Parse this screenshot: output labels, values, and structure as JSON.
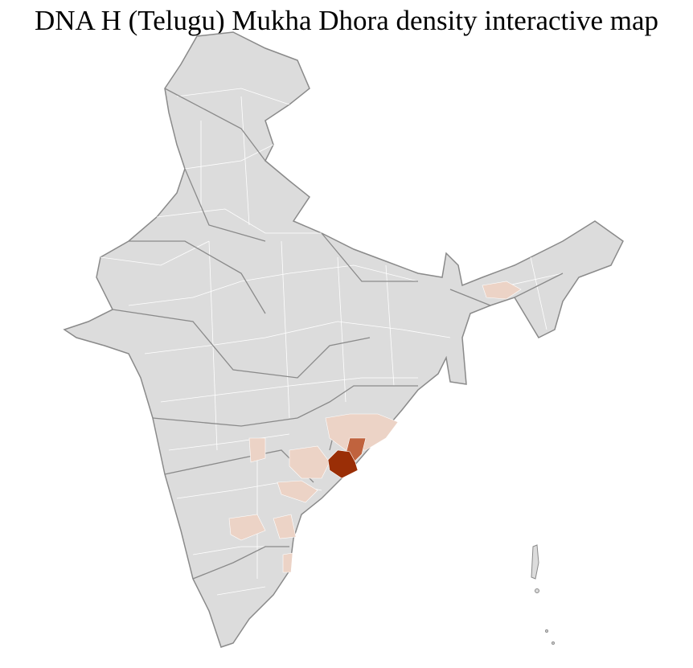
{
  "title": "DNA H (Telugu) Mukha Dhora density interactive map",
  "colors": {
    "base_fill": "#dcdcdc",
    "district_border": "#ffffff",
    "state_border": "#8a8a8a",
    "density_low": "#ecd3c6",
    "density_medium": "#c0633e",
    "density_high": "#9a2e06"
  }
}
